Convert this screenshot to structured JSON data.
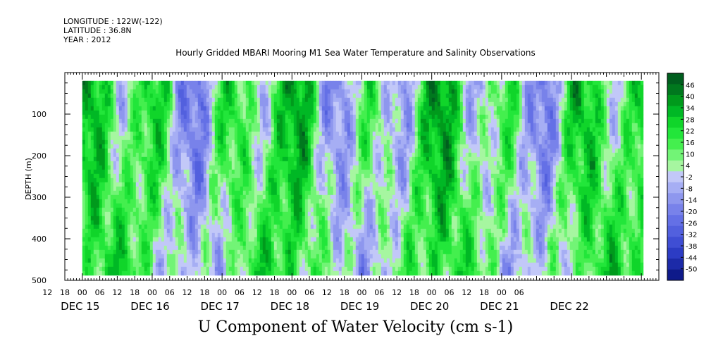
{
  "header": {
    "longitude": "LONGITUDE : 122W(-122)",
    "latitude": "LATITUDE : 36.8N",
    "year": "YEAR : 2012"
  },
  "chart_data": {
    "type": "heatmap",
    "title": "Hourly Gridded MBARI Mooring M1 Sea Water Temperature and Salinity Observations",
    "subtitle": "U Component of Water Velocity (cm s-1)",
    "ylabel": "DEPTH (m)",
    "y_ticks": [
      100,
      200,
      300,
      400,
      500
    ],
    "y_tick_labels": [
      "100",
      "200",
      "300",
      "400",
      "500"
    ],
    "ylim": [
      500,
      0
    ],
    "x_hour_labels": [
      "12",
      "18",
      "00",
      "06",
      "12",
      "18",
      "00",
      "06",
      "12",
      "18",
      "00",
      "06",
      "12",
      "18",
      "00",
      "06",
      "12",
      "18",
      "00",
      "06",
      "12",
      "18",
      "00",
      "06",
      "12",
      "18",
      "00",
      "06"
    ],
    "x_day_labels": [
      "DEC 15",
      "DEC 16",
      "DEC 17",
      "DEC 18",
      "DEC 19",
      "DEC 20",
      "DEC 21",
      "DEC 22"
    ],
    "colorbar": {
      "labels": [
        "46",
        "40",
        "34",
        "28",
        "22",
        "16",
        "10",
        "4",
        "-2",
        "-8",
        "-14",
        "-20",
        "-26",
        "-32",
        "-38",
        "-44",
        "-50"
      ],
      "range": [
        -50,
        52
      ],
      "step": 6,
      "high_colors": [
        "#005e1e",
        "#00781e",
        "#009a1c",
        "#00b825",
        "#10d52a",
        "#22e63a",
        "#44ef4e",
        "#72f476",
        "#a6f6a0"
      ],
      "low_colors": [
        "#c2c8f8",
        "#a6aef4",
        "#8e97ee",
        "#7882ea",
        "#6470e6",
        "#5260de",
        "#3f4ed4",
        "#2c3cc4",
        "#1c2aa8",
        "#0e1a8a"
      ]
    },
    "x_range_hours": [
      -6,
      198
    ],
    "data_start_hour": 0,
    "data_end_hour": 192
  }
}
